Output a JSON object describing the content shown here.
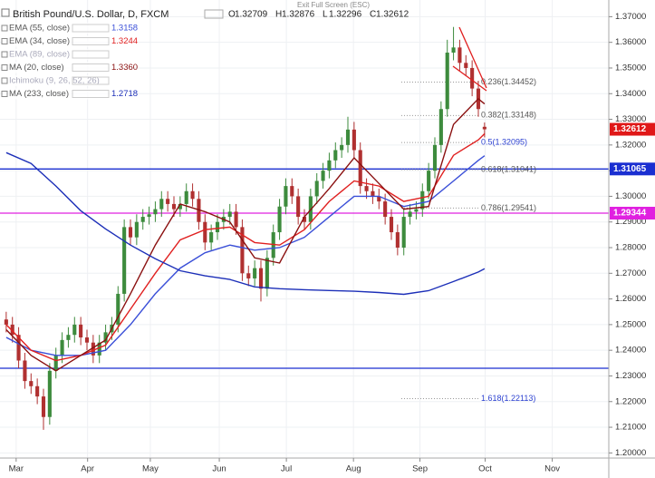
{
  "chart_data": {
    "type": "candlestick",
    "title": "British Pound/U.S. Dollar, D, FXCM",
    "notice": "Exit Full Screen (ESC)",
    "ohlc_prefixes": [
      "O",
      "H",
      "L",
      "C"
    ],
    "up_color": "#3d8b3d",
    "down_color": "#b03030",
    "categories": [
      null,
      null,
      null,
      null,
      null,
      null,
      null,
      null,
      null,
      null,
      null,
      null,
      null,
      null,
      null,
      null,
      null,
      null,
      null,
      null,
      null,
      null,
      null,
      null,
      null,
      null,
      null,
      null,
      null,
      null,
      null,
      null,
      null,
      null,
      null,
      null,
      null,
      null,
      null,
      null,
      null,
      null,
      null,
      null,
      null,
      null,
      null,
      null,
      null,
      null,
      null,
      null,
      null,
      null,
      null,
      null,
      null,
      null,
      null,
      null,
      null,
      null,
      null,
      null,
      null,
      null,
      null,
      null,
      null,
      null,
      null,
      null,
      null,
      null,
      null,
      null,
      null,
      null
    ],
    "open": [
      1.252,
      1.25,
      1.246,
      1.236,
      1.228,
      1.226,
      1.222,
      1.214,
      1.232,
      1.238,
      1.244,
      1.246,
      1.25,
      1.245,
      1.243,
      1.238,
      1.243,
      1.247,
      1.25,
      1.262,
      1.288,
      1.284,
      1.29,
      1.292,
      1.293,
      1.295,
      1.299,
      1.297,
      1.295,
      1.297,
      1.302,
      1.299,
      1.29,
      1.282,
      1.286,
      1.29,
      1.292,
      1.294,
      1.288,
      1.27,
      1.268,
      1.272,
      1.264,
      1.276,
      1.286,
      1.296,
      1.304,
      1.3,
      1.292,
      1.29,
      1.3,
      1.306,
      1.31,
      1.314,
      1.318,
      1.32,
      1.326,
      1.318,
      1.304,
      1.302,
      1.3,
      1.298,
      1.292,
      1.286,
      1.28,
      1.292,
      1.294,
      1.295,
      1.302,
      1.31,
      1.32,
      1.334,
      1.356,
      1.358,
      1.352,
      1.35,
      1.342,
      1.32709
    ],
    "high": [
      1.255,
      1.253,
      1.249,
      1.239,
      1.231,
      1.229,
      1.225,
      1.235,
      1.241,
      1.247,
      1.249,
      1.253,
      1.253,
      1.248,
      1.246,
      1.246,
      1.25,
      1.253,
      1.265,
      1.291,
      1.291,
      1.293,
      1.295,
      1.296,
      1.298,
      1.302,
      1.302,
      1.3,
      1.3,
      1.305,
      1.305,
      1.302,
      1.293,
      1.289,
      1.293,
      1.295,
      1.297,
      1.297,
      1.291,
      1.273,
      1.275,
      1.275,
      1.279,
      1.289,
      1.299,
      1.307,
      1.307,
      1.303,
      1.295,
      1.303,
      1.309,
      1.313,
      1.317,
      1.321,
      1.323,
      1.331,
      1.329,
      1.321,
      1.307,
      1.305,
      1.303,
      1.301,
      1.295,
      1.289,
      1.295,
      1.297,
      1.298,
      1.305,
      1.313,
      1.323,
      1.337,
      1.361,
      1.366,
      1.361,
      1.355,
      1.353,
      1.345,
      1.32876
    ],
    "low": [
      1.247,
      1.243,
      1.233,
      1.225,
      1.223,
      1.219,
      1.209,
      1.211,
      1.229,
      1.235,
      1.241,
      1.243,
      1.242,
      1.24,
      1.235,
      1.235,
      1.24,
      1.244,
      1.247,
      1.259,
      1.281,
      1.281,
      1.287,
      1.289,
      1.29,
      1.292,
      1.294,
      1.292,
      1.292,
      1.294,
      1.296,
      1.287,
      1.279,
      1.279,
      1.283,
      1.287,
      1.289,
      1.285,
      1.267,
      1.265,
      1.265,
      1.259,
      1.261,
      1.273,
      1.283,
      1.293,
      1.297,
      1.289,
      1.287,
      1.287,
      1.297,
      1.303,
      1.307,
      1.311,
      1.315,
      1.317,
      1.315,
      1.301,
      1.299,
      1.297,
      1.295,
      1.289,
      1.283,
      1.277,
      1.277,
      1.289,
      1.291,
      1.292,
      1.299,
      1.307,
      1.317,
      1.331,
      1.353,
      1.349,
      1.347,
      1.339,
      1.331,
      1.32296
    ],
    "close": [
      1.25,
      1.246,
      1.236,
      1.228,
      1.226,
      1.222,
      1.214,
      1.232,
      1.238,
      1.244,
      1.246,
      1.25,
      1.245,
      1.243,
      1.238,
      1.243,
      1.247,
      1.25,
      1.262,
      1.288,
      1.284,
      1.29,
      1.292,
      1.293,
      1.295,
      1.299,
      1.297,
      1.295,
      1.297,
      1.302,
      1.299,
      1.29,
      1.282,
      1.286,
      1.29,
      1.292,
      1.294,
      1.288,
      1.27,
      1.268,
      1.272,
      1.264,
      1.276,
      1.286,
      1.296,
      1.304,
      1.3,
      1.292,
      1.29,
      1.3,
      1.306,
      1.31,
      1.314,
      1.318,
      1.32,
      1.326,
      1.318,
      1.304,
      1.302,
      1.3,
      1.298,
      1.292,
      1.286,
      1.28,
      1.292,
      1.294,
      1.295,
      1.302,
      1.31,
      1.32,
      1.334,
      1.356,
      1.358,
      1.352,
      1.35,
      1.342,
      1.334,
      1.32612
    ],
    "last_price_color": "#e01818",
    "series": [
      {
        "name": "EMA (55, close)",
        "color": "#3a4fd8",
        "visible": true,
        "last": 1.3158,
        "x": [
          0,
          4,
          8,
          12,
          16,
          20,
          24,
          28,
          32,
          36,
          40,
          44,
          48,
          52,
          56,
          60,
          64,
          68,
          72,
          76,
          77
        ],
        "values": [
          1.245,
          1.24,
          1.238,
          1.238,
          1.24,
          1.25,
          1.262,
          1.272,
          1.278,
          1.281,
          1.279,
          1.28,
          1.284,
          1.292,
          1.3,
          1.3,
          1.296,
          1.298,
          1.306,
          1.314,
          1.3158
        ]
      },
      {
        "name": "EMA (34, close)",
        "color": "#e02020",
        "visible": true,
        "last": 1.3244,
        "x": [
          0,
          4,
          8,
          12,
          16,
          20,
          24,
          28,
          32,
          36,
          40,
          44,
          48,
          52,
          56,
          60,
          64,
          68,
          72,
          76,
          77
        ],
        "values": [
          1.25,
          1.24,
          1.236,
          1.238,
          1.242,
          1.256,
          1.27,
          1.283,
          1.287,
          1.288,
          1.282,
          1.281,
          1.287,
          1.298,
          1.306,
          1.304,
          1.298,
          1.3,
          1.316,
          1.322,
          1.3244
        ]
      },
      {
        "name": "EMA (89, close)",
        "color": "#9aa0c8",
        "visible": false
      },
      {
        "name": "MA (20, close)",
        "color": "#8a1010",
        "visible": true,
        "last": {
          "value": 1.336,
          "label": "1.3360"
        },
        "x": [
          0,
          4,
          8,
          12,
          16,
          20,
          24,
          28,
          32,
          36,
          40,
          44,
          48,
          52,
          56,
          60,
          64,
          68,
          72,
          76,
          77
        ],
        "values": [
          1.248,
          1.238,
          1.232,
          1.238,
          1.244,
          1.262,
          1.281,
          1.297,
          1.294,
          1.29,
          1.276,
          1.274,
          1.292,
          1.303,
          1.315,
          1.305,
          1.295,
          1.296,
          1.328,
          1.338,
          1.336
        ]
      },
      {
        "name": "Ichimoku (9, 26, 52, 26)",
        "color": "#9aa0c8",
        "visible": false
      },
      {
        "name": "MA (233, close)",
        "color": "#1c2fb8",
        "visible": true,
        "last": 1.2718,
        "x": [
          0,
          4,
          8,
          12,
          16,
          20,
          24,
          28,
          32,
          36,
          40,
          44,
          48,
          52,
          56,
          60,
          64,
          68,
          72,
          76,
          77
        ],
        "values": [
          1.317,
          1.3128,
          1.304,
          1.2944,
          1.2873,
          1.281,
          1.2757,
          1.271,
          1.269,
          1.2676,
          1.2647,
          1.264,
          1.2636,
          1.2633,
          1.263,
          1.2625,
          1.2618,
          1.2632,
          1.2668,
          1.2705,
          1.2718
        ]
      }
    ],
    "hlines": [
      {
        "value": 1.31065,
        "color": "#1a2fd1",
        "boxed": true
      },
      {
        "value": 1.29344,
        "color": "#e020e0",
        "boxed": true
      },
      {
        "value": 1.233,
        "color": "#1a2fd1",
        "boxed": false
      }
    ],
    "fib_levels": [
      {
        "label": "0.236(1.34452)",
        "value": 1.34452,
        "color": "#555555"
      },
      {
        "label": "0.382(1.33148)",
        "value": 1.33148,
        "color": "#555555"
      },
      {
        "label": "0.5(1.32095)",
        "value": 1.32095,
        "color": "#2a3fd0"
      },
      {
        "label": "0.618(1.31041)",
        "value": 1.31041,
        "color": "#555555"
      },
      {
        "label": "0.786(1.29541)",
        "value": 1.29541,
        "color": "#555555"
      },
      {
        "label": "1.618(1.22113)",
        "value": 1.22113,
        "color": "#2a3fd0"
      }
    ],
    "xlim": [
      -1,
      97
    ],
    "xticks": [
      {
        "value": 1.6,
        "label": "Mar"
      },
      {
        "value": 13.1,
        "label": "Apr"
      },
      {
        "value": 23.2,
        "label": "May"
      },
      {
        "value": 34.3,
        "label": "Jun"
      },
      {
        "value": 45.1,
        "label": "Jul"
      },
      {
        "value": 55.9,
        "label": "Aug"
      },
      {
        "value": 66.6,
        "label": "Sep"
      },
      {
        "value": 77.1,
        "label": "Oct"
      },
      {
        "value": 87.9,
        "label": "Nov"
      }
    ],
    "ylim": [
      1.198,
      1.3765
    ],
    "yticks": [
      {
        "value": 1.37,
        "label": "1.37000"
      },
      {
        "value": 1.36,
        "label": "1.36000"
      },
      {
        "value": 1.35,
        "label": "1.35000"
      },
      {
        "value": 1.34,
        "label": "1.34000"
      },
      {
        "value": 1.33,
        "label": "1.33000"
      },
      {
        "value": 1.32,
        "label": "1.32000"
      },
      {
        "value": 1.31,
        "label": "1.31000"
      },
      {
        "value": 1.3,
        "label": "1.30000"
      },
      {
        "value": 1.29,
        "label": "1.29000"
      },
      {
        "value": 1.28,
        "label": "1.28000"
      },
      {
        "value": 1.27,
        "label": "1.27000"
      },
      {
        "value": 1.26,
        "label": "1.26000"
      },
      {
        "value": 1.25,
        "label": "1.25000"
      },
      {
        "value": 1.24,
        "label": "1.24000"
      },
      {
        "value": 1.23,
        "label": "1.23000"
      },
      {
        "value": 1.22,
        "label": "1.22000"
      },
      {
        "value": 1.21,
        "label": "1.21000"
      },
      {
        "value": 1.2,
        "label": "1.20000"
      }
    ],
    "grid": true
  }
}
